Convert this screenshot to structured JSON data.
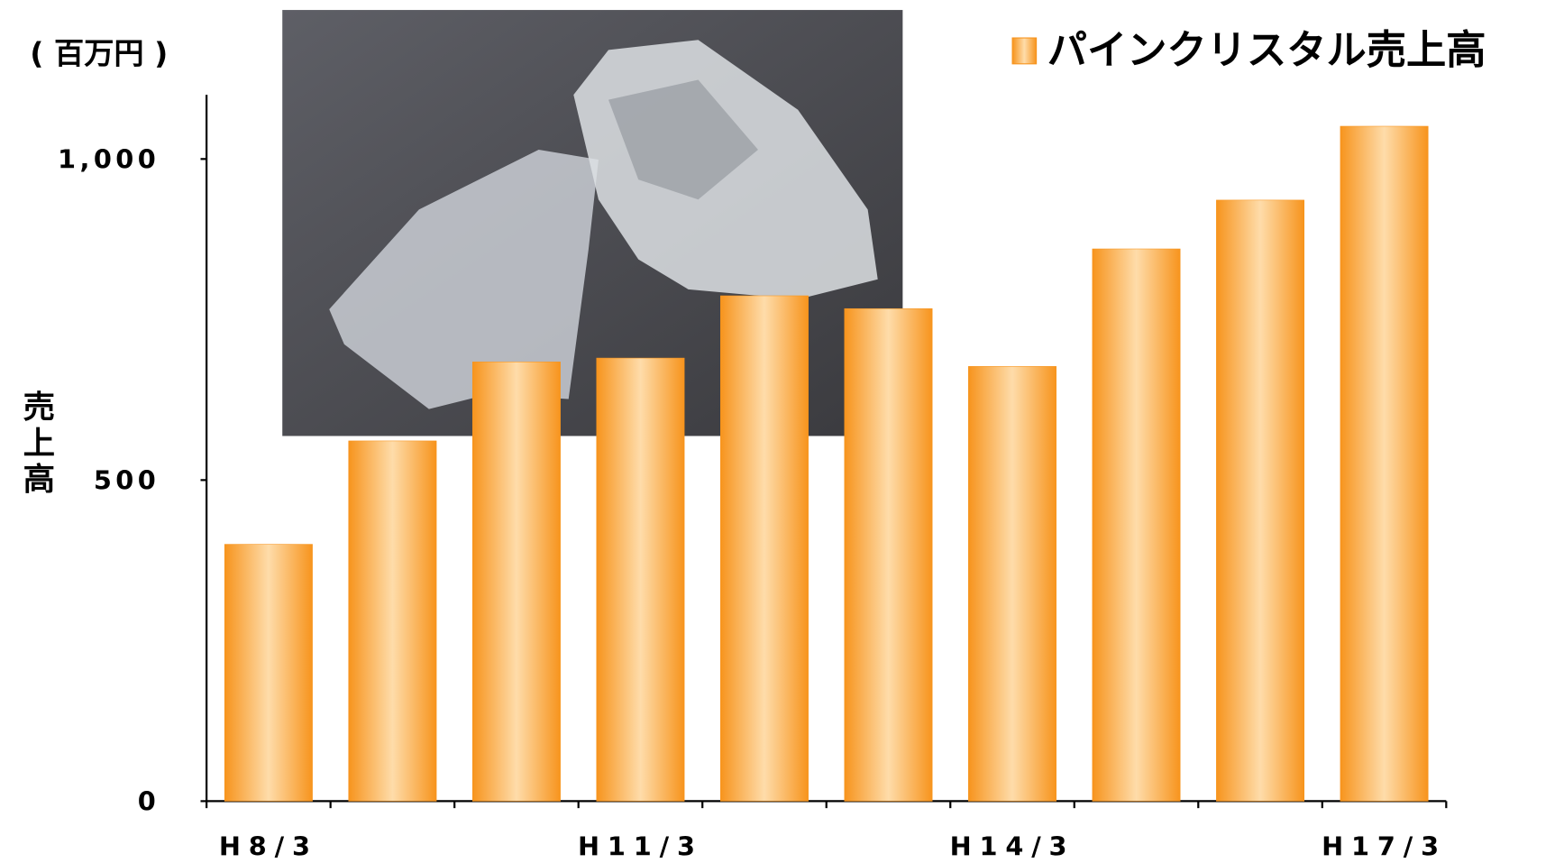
{
  "chart_data": {
    "type": "bar",
    "unit_label": "( 百万円 )",
    "y_label": "売上高",
    "categories": [
      "H8/3",
      null,
      null,
      "H11/3",
      null,
      null,
      "H14/3",
      null,
      null,
      "H17/3"
    ],
    "series": [
      {
        "name": "パインクリスタル売上高",
        "color": "#f7941d",
        "values": [
          400,
          561,
          684,
          690,
          787,
          767,
          677,
          860,
          936,
          1051
        ]
      }
    ],
    "ylim": [
      0,
      1100
    ],
    "yticks": [
      0,
      500,
      {
        "value": 1000,
        "label": "1,000"
      }
    ],
    "grid": false,
    "legend": "top-right"
  }
}
